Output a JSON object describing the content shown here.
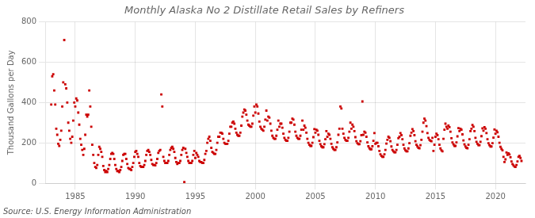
{
  "chart_data": {
    "type": "scatter",
    "title": "Monthly Alaska No 2 Distillate Retail Sales by Refiners",
    "ylabel": "Thousand Gallons per Day",
    "annotation": "Source: U.S. Energy Information Administration",
    "color": "#CC0000",
    "marker": "square",
    "grid": true,
    "xlim": [
      1982.5,
      2022.5
    ],
    "ylim": [
      0,
      800
    ],
    "xticks": [
      1985,
      1990,
      1995,
      2000,
      2005,
      2010,
      2015,
      2020
    ],
    "yticks": [
      0,
      200,
      400,
      600,
      800
    ],
    "x": [
      1983.0,
      1983.083,
      1983.167,
      1983.25,
      1983.333,
      1983.417,
      1983.5,
      1983.583,
      1983.667,
      1983.75,
      1983.833,
      1983.917,
      1984.0,
      1984.083,
      1984.167,
      1984.25,
      1984.333,
      1984.417,
      1984.5,
      1984.583,
      1984.667,
      1984.75,
      1984.833,
      1984.917,
      1985.0,
      1985.083,
      1985.167,
      1985.25,
      1985.333,
      1985.417,
      1985.5,
      1985.583,
      1985.667,
      1985.75,
      1985.833,
      1985.917,
      1986.0,
      1986.083,
      1986.167,
      1986.25,
      1986.333,
      1986.417,
      1986.5,
      1986.583,
      1986.667,
      1986.75,
      1986.833,
      1986.917,
      1987.0,
      1987.083,
      1987.167,
      1987.25,
      1987.333,
      1987.417,
      1987.5,
      1987.583,
      1987.667,
      1987.75,
      1987.833,
      1987.917,
      1988.0,
      1988.083,
      1988.167,
      1988.25,
      1988.333,
      1988.417,
      1988.5,
      1988.583,
      1988.667,
      1988.75,
      1988.833,
      1988.917,
      1989.0,
      1989.083,
      1989.167,
      1989.25,
      1989.333,
      1989.417,
      1989.5,
      1989.583,
      1989.667,
      1989.75,
      1989.833,
      1989.917,
      1990.0,
      1990.083,
      1990.167,
      1990.25,
      1990.333,
      1990.417,
      1990.5,
      1990.583,
      1990.667,
      1990.75,
      1990.833,
      1990.917,
      1991.0,
      1991.083,
      1991.167,
      1991.25,
      1991.333,
      1991.417,
      1991.5,
      1991.583,
      1991.667,
      1991.75,
      1991.833,
      1991.917,
      1992.0,
      1992.083,
      1992.167,
      1992.25,
      1992.333,
      1992.417,
      1992.5,
      1992.583,
      1992.667,
      1992.75,
      1992.833,
      1992.917,
      1993.0,
      1993.083,
      1993.167,
      1993.25,
      1993.333,
      1993.417,
      1993.5,
      1993.583,
      1993.667,
      1993.75,
      1993.833,
      1993.917,
      1994.0,
      1994.083,
      1994.167,
      1994.25,
      1994.333,
      1994.417,
      1994.5,
      1994.583,
      1994.667,
      1994.75,
      1994.833,
      1994.917,
      1995.0,
      1995.083,
      1995.167,
      1995.25,
      1995.333,
      1995.417,
      1995.5,
      1995.583,
      1995.667,
      1995.75,
      1995.833,
      1995.917,
      1996.0,
      1996.083,
      1996.167,
      1996.25,
      1996.333,
      1996.417,
      1996.5,
      1996.583,
      1996.667,
      1996.75,
      1996.833,
      1996.917,
      1997.0,
      1997.083,
      1997.167,
      1997.25,
      1997.333,
      1997.417,
      1997.5,
      1997.583,
      1997.667,
      1997.75,
      1997.833,
      1997.917,
      1998.0,
      1998.083,
      1998.167,
      1998.25,
      1998.333,
      1998.417,
      1998.5,
      1998.583,
      1998.667,
      1998.75,
      1998.833,
      1998.917,
      1999.0,
      1999.083,
      1999.167,
      1999.25,
      1999.333,
      1999.417,
      1999.5,
      1999.583,
      1999.667,
      1999.75,
      1999.833,
      1999.917,
      2000.0,
      2000.083,
      2000.167,
      2000.25,
      2000.333,
      2000.417,
      2000.5,
      2000.583,
      2000.667,
      2000.75,
      2000.833,
      2000.917,
      2001.0,
      2001.083,
      2001.167,
      2001.25,
      2001.333,
      2001.417,
      2001.5,
      2001.583,
      2001.667,
      2001.75,
      2001.833,
      2001.917,
      2002.0,
      2002.083,
      2002.167,
      2002.25,
      2002.333,
      2002.417,
      2002.5,
      2002.583,
      2002.667,
      2002.75,
      2002.833,
      2002.917,
      2003.0,
      2003.083,
      2003.167,
      2003.25,
      2003.333,
      2003.417,
      2003.5,
      2003.583,
      2003.667,
      2003.75,
      2003.833,
      2003.917,
      2004.0,
      2004.083,
      2004.167,
      2004.25,
      2004.333,
      2004.417,
      2004.5,
      2004.583,
      2004.667,
      2004.75,
      2004.833,
      2004.917,
      2005.0,
      2005.083,
      2005.167,
      2005.25,
      2005.333,
      2005.417,
      2005.5,
      2005.583,
      2005.667,
      2005.75,
      2005.833,
      2005.917,
      2006.0,
      2006.083,
      2006.167,
      2006.25,
      2006.333,
      2006.417,
      2006.5,
      2006.583,
      2006.667,
      2006.75,
      2006.833,
      2006.917,
      2007.0,
      2007.083,
      2007.167,
      2007.25,
      2007.333,
      2007.417,
      2007.5,
      2007.583,
      2007.667,
      2007.75,
      2007.833,
      2007.917,
      2008.0,
      2008.083,
      2008.167,
      2008.25,
      2008.333,
      2008.417,
      2008.5,
      2008.583,
      2008.667,
      2008.75,
      2008.833,
      2008.917,
      2009.0,
      2009.083,
      2009.167,
      2009.25,
      2009.333,
      2009.417,
      2009.5,
      2009.583,
      2009.667,
      2009.75,
      2009.833,
      2009.917,
      2010.0,
      2010.083,
      2010.167,
      2010.25,
      2010.333,
      2010.417,
      2010.5,
      2010.583,
      2010.667,
      2010.75,
      2010.833,
      2010.917,
      2011.0,
      2011.083,
      2011.167,
      2011.25,
      2011.333,
      2011.417,
      2011.5,
      2011.583,
      2011.667,
      2011.75,
      2011.833,
      2011.917,
      2012.0,
      2012.083,
      2012.167,
      2012.25,
      2012.333,
      2012.417,
      2012.5,
      2012.583,
      2012.667,
      2012.75,
      2012.833,
      2012.917,
      2013.0,
      2013.083,
      2013.167,
      2013.25,
      2013.333,
      2013.417,
      2013.5,
      2013.583,
      2013.667,
      2013.75,
      2013.833,
      2013.917,
      2014.0,
      2014.083,
      2014.167,
      2014.25,
      2014.333,
      2014.417,
      2014.5,
      2014.583,
      2014.667,
      2014.75,
      2014.833,
      2014.917,
      2015.0,
      2015.083,
      2015.167,
      2015.25,
      2015.333,
      2015.417,
      2015.5,
      2015.583,
      2015.667,
      2015.75,
      2015.833,
      2015.917,
      2016.0,
      2016.083,
      2016.167,
      2016.25,
      2016.333,
      2016.417,
      2016.5,
      2016.583,
      2016.667,
      2016.75,
      2016.833,
      2016.917,
      2017.0,
      2017.083,
      2017.167,
      2017.25,
      2017.333,
      2017.417,
      2017.5,
      2017.583,
      2017.667,
      2017.75,
      2017.833,
      2017.917,
      2018.0,
      2018.083,
      2018.167,
      2018.25,
      2018.333,
      2018.417,
      2018.5,
      2018.583,
      2018.667,
      2018.75,
      2018.833,
      2018.917,
      2019.0,
      2019.083,
      2019.167,
      2019.25,
      2019.333,
      2019.417,
      2019.5,
      2019.583,
      2019.667,
      2019.75,
      2019.833,
      2019.917,
      2020.0,
      2020.083,
      2020.167,
      2020.25,
      2020.333,
      2020.417,
      2020.5,
      2020.583,
      2020.667,
      2020.75,
      2020.833,
      2020.917,
      2021.0,
      2021.083,
      2021.167,
      2021.25,
      2021.333,
      2021.417,
      2021.5,
      2021.583,
      2021.667,
      2021.75,
      2021.833,
      2021.917,
      2022.0,
      2022.083,
      2022.167
    ],
    "values": [
      390,
      530,
      540,
      460,
      390,
      270,
      240,
      195,
      185,
      215,
      260,
      380,
      500,
      710,
      490,
      470,
      400,
      300,
      260,
      220,
      200,
      230,
      310,
      400,
      380,
      420,
      410,
      350,
      290,
      220,
      190,
      165,
      140,
      170,
      240,
      340,
      330,
      340,
      460,
      380,
      280,
      190,
      140,
      100,
      80,
      75,
      90,
      140,
      180,
      170,
      155,
      130,
      85,
      65,
      55,
      60,
      55,
      70,
      90,
      120,
      145,
      150,
      145,
      120,
      90,
      70,
      60,
      60,
      55,
      65,
      80,
      110,
      140,
      145,
      145,
      120,
      95,
      75,
      70,
      70,
      65,
      80,
      100,
      130,
      155,
      160,
      145,
      130,
      100,
      85,
      80,
      80,
      80,
      90,
      110,
      140,
      160,
      165,
      155,
      140,
      115,
      95,
      90,
      90,
      88,
      100,
      120,
      150,
      160,
      165,
      440,
      380,
      130,
      110,
      100,
      100,
      100,
      110,
      140,
      165,
      175,
      180,
      170,
      155,
      125,
      105,
      95,
      100,
      100,
      110,
      140,
      165,
      175,
      5,
      170,
      150,
      130,
      110,
      100,
      100,
      100,
      110,
      140,
      160,
      125,
      150,
      140,
      130,
      110,
      105,
      105,
      100,
      100,
      115,
      145,
      160,
      200,
      220,
      230,
      210,
      175,
      155,
      150,
      145,
      145,
      165,
      200,
      230,
      230,
      250,
      250,
      245,
      220,
      200,
      195,
      195,
      195,
      210,
      245,
      280,
      280,
      300,
      305,
      295,
      270,
      250,
      240,
      235,
      235,
      250,
      285,
      330,
      350,
      365,
      360,
      340,
      310,
      290,
      285,
      280,
      280,
      295,
      335,
      380,
      350,
      390,
      380,
      345,
      305,
      280,
      270,
      265,
      260,
      280,
      315,
      360,
      310,
      330,
      325,
      295,
      260,
      235,
      225,
      220,
      220,
      235,
      265,
      310,
      280,
      295,
      295,
      275,
      245,
      225,
      215,
      210,
      210,
      225,
      255,
      300,
      300,
      320,
      315,
      290,
      255,
      235,
      225,
      220,
      220,
      235,
      265,
      310,
      265,
      285,
      275,
      250,
      220,
      200,
      190,
      185,
      185,
      200,
      228,
      268,
      250,
      265,
      260,
      240,
      210,
      193,
      183,
      178,
      178,
      193,
      218,
      258,
      230,
      245,
      240,
      220,
      195,
      178,
      170,
      165,
      165,
      178,
      202,
      240,
      270,
      380,
      370,
      270,
      245,
      225,
      215,
      210,
      210,
      225,
      255,
      300,
      270,
      290,
      280,
      258,
      228,
      208,
      198,
      193,
      193,
      208,
      238,
      405,
      240,
      255,
      250,
      230,
      202,
      183,
      173,
      168,
      168,
      183,
      210,
      248,
      195,
      200,
      200,
      183,
      160,
      143,
      135,
      130,
      130,
      143,
      165,
      196,
      215,
      230,
      225,
      208,
      182,
      165,
      158,
      153,
      153,
      165,
      190,
      223,
      230,
      248,
      238,
      218,
      190,
      172,
      163,
      158,
      158,
      172,
      198,
      235,
      250,
      268,
      258,
      238,
      208,
      190,
      182,
      175,
      173,
      188,
      215,
      255,
      300,
      320,
      310,
      283,
      248,
      225,
      215,
      210,
      208,
      225,
      160,
      190,
      230,
      245,
      238,
      218,
      190,
      172,
      163,
      158,
      220,
      265,
      295,
      280,
      270,
      285,
      278,
      255,
      223,
      202,
      192,
      185,
      185,
      202,
      232,
      273,
      258,
      270,
      265,
      242,
      212,
      192,
      182,
      175,
      173,
      190,
      218,
      258,
      270,
      288,
      280,
      258,
      225,
      205,
      195,
      188,
      188,
      205,
      233,
      272,
      260,
      278,
      270,
      248,
      218,
      198,
      188,
      182,
      182,
      198,
      226,
      266,
      245,
      260,
      252,
      230,
      200,
      180,
      170,
      163,
      130,
      105,
      118,
      152,
      140,
      148,
      142,
      128,
      108,
      95,
      88,
      82,
      80,
      90,
      108,
      130,
      135,
      125,
      110
    ]
  }
}
